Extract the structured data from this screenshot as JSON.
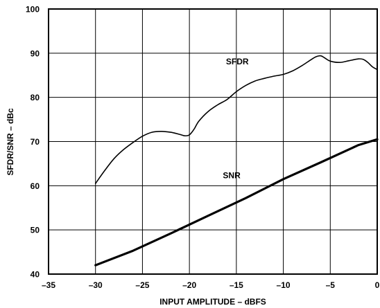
{
  "chart_data": {
    "type": "line",
    "title": "",
    "xlabel": "INPUT AMPLITUDE – dBFS",
    "ylabel": "SFDR/SNR – dBc",
    "xlim": [
      -35,
      0
    ],
    "ylim": [
      40,
      100
    ],
    "x_ticks": [
      -35,
      -30,
      -25,
      -20,
      -15,
      -10,
      -5,
      0
    ],
    "y_ticks": [
      40,
      50,
      60,
      70,
      80,
      90,
      100
    ],
    "x_tick_labels": [
      "–35",
      "–30",
      "–25",
      "–20",
      "–15",
      "–10",
      "–5",
      "0"
    ],
    "y_tick_labels": [
      "40",
      "50",
      "60",
      "70",
      "80",
      "90",
      "100"
    ],
    "grid": true,
    "series": [
      {
        "name": "SFDR",
        "label_at": [
          -14.9,
          87.5
        ],
        "x": [
          -30,
          -29,
          -28,
          -27,
          -26,
          -25,
          -24,
          -23,
          -22,
          -21,
          -20.5,
          -20,
          -19.5,
          -19,
          -18,
          -17,
          -16,
          -15,
          -14,
          -13,
          -12,
          -11,
          -10,
          -9,
          -8,
          -7,
          -6.5,
          -6,
          -5.5,
          -5,
          -4,
          -3,
          -2,
          -1.5,
          -1,
          -0.5,
          0
        ],
        "values": [
          60.5,
          63.5,
          66.2,
          68.2,
          69.8,
          71.2,
          72.1,
          72.3,
          72.1,
          71.6,
          71.3,
          71.5,
          72.8,
          74.6,
          76.8,
          78.3,
          79.5,
          81.3,
          82.7,
          83.7,
          84.3,
          84.8,
          85.2,
          86.0,
          87.2,
          88.6,
          89.2,
          89.4,
          88.8,
          88.2,
          87.9,
          88.3,
          88.7,
          88.6,
          87.9,
          86.9,
          86.3
        ]
      },
      {
        "name": "SNR",
        "label_at": [
          -15.5,
          61.7
        ],
        "x": [
          -30,
          -26,
          -22,
          -18,
          -14,
          -10,
          -6,
          -2,
          0
        ],
        "values": [
          42.0,
          45.3,
          49.2,
          53.2,
          57.2,
          61.5,
          65.3,
          69.2,
          70.5
        ]
      }
    ]
  }
}
